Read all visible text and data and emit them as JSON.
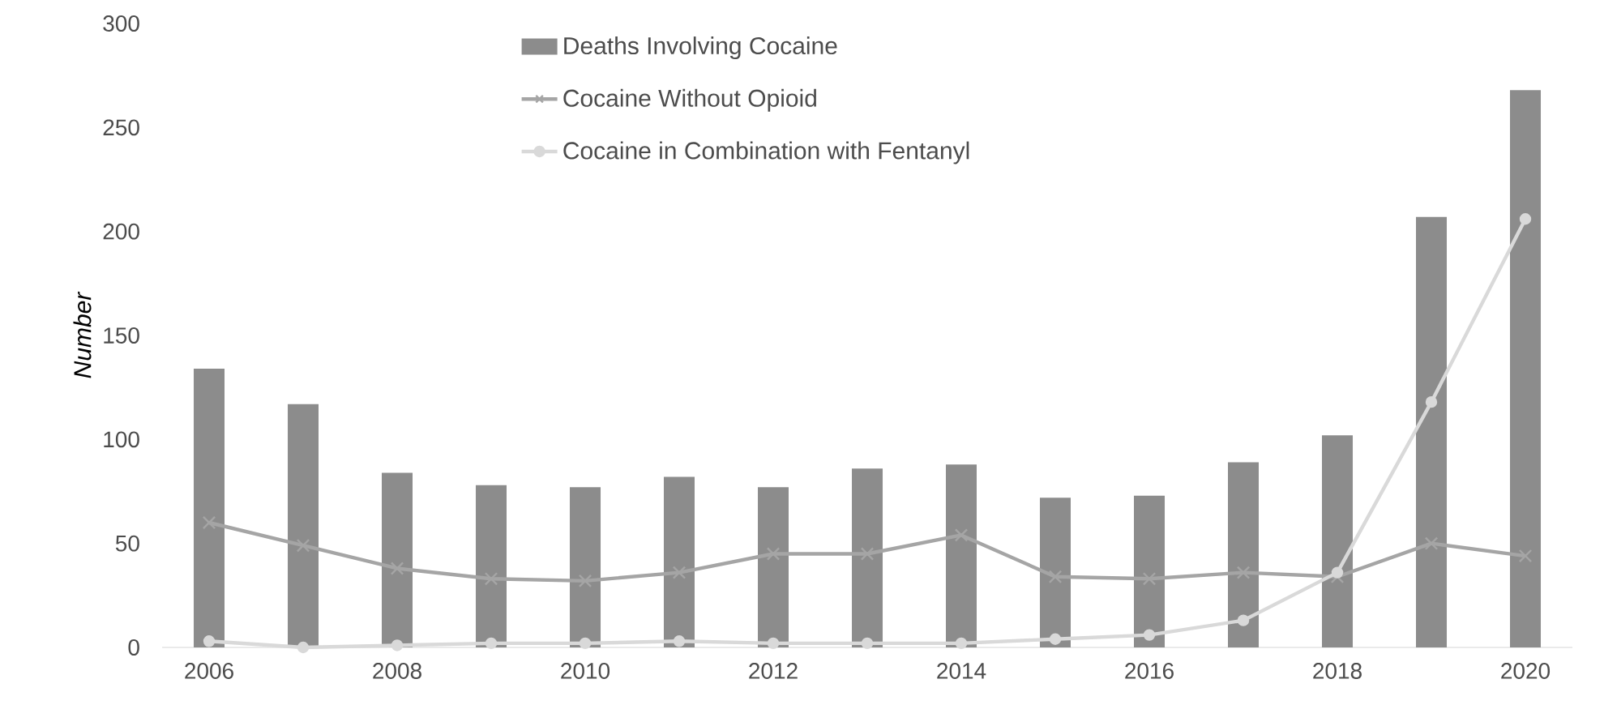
{
  "chart_data": {
    "type": "bar",
    "ylabel": "Number",
    "x": [
      2006,
      2007,
      2008,
      2009,
      2010,
      2011,
      2012,
      2013,
      2014,
      2015,
      2016,
      2017,
      2018,
      2019,
      2020
    ],
    "series": [
      {
        "name": "Deaths Involving Cocaine",
        "color": "#8c8c8c",
        "values": [
          134,
          117,
          84,
          78,
          77,
          82,
          77,
          86,
          88,
          72,
          73,
          89,
          102,
          207,
          268
        ]
      },
      {
        "name": "Cocaine Without Opioid",
        "type": "line",
        "marker": "cross",
        "color": "#a5a5a5",
        "values": [
          60,
          49,
          38,
          33,
          32,
          36,
          45,
          45,
          54,
          34,
          33,
          36,
          34,
          50,
          44
        ]
      },
      {
        "name": "Cocaine in Combination with Fentanyl",
        "type": "line",
        "marker": "circle",
        "color": "#d9d9d9",
        "values": [
          3,
          0,
          1,
          2,
          2,
          3,
          2,
          2,
          2,
          4,
          6,
          13,
          36,
          118,
          206
        ]
      }
    ],
    "xlim": [
      2005.5,
      2020.5
    ],
    "xticks": [
      2006,
      2008,
      2010,
      2012,
      2014,
      2016,
      2018,
      2020
    ],
    "ylim": [
      0,
      300
    ],
    "yticks": [
      0,
      50,
      100,
      150,
      200,
      250,
      300
    ],
    "grid": false,
    "legend": "top"
  }
}
